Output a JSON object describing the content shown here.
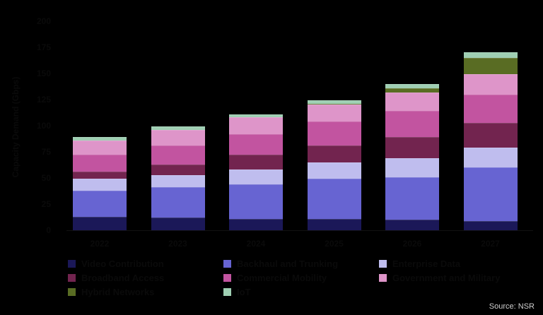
{
  "chart_data": {
    "type": "bar",
    "stacked": true,
    "title": "",
    "xlabel": "",
    "ylabel": "Capacity Demand (Gbps)",
    "ylim": [
      0,
      200
    ],
    "yticks": [
      0,
      25,
      50,
      75,
      100,
      125,
      150,
      175,
      200
    ],
    "grid": false,
    "legend_position": "bottom",
    "categories": [
      "2022",
      "2023",
      "2024",
      "2025",
      "2026",
      "2027"
    ],
    "series": [
      {
        "name": "Video Contribution",
        "color": "#1b1858",
        "values": [
          13,
          12,
          11,
          11,
          10,
          9
        ]
      },
      {
        "name": "Backhaul and Trunking",
        "color": "#6764d2",
        "values": [
          25,
          29,
          33,
          38,
          41,
          51
        ]
      },
      {
        "name": "Enterprise Data",
        "color": "#bfbdee",
        "values": [
          11,
          12,
          14,
          16,
          18,
          19
        ]
      },
      {
        "name": "Broadband Access",
        "color": "#72244f",
        "values": [
          7,
          10,
          14,
          16,
          20,
          24
        ]
      },
      {
        "name": "Commercial Mobility",
        "color": "#c254a0",
        "values": [
          16,
          18,
          20,
          23,
          25,
          27
        ]
      },
      {
        "name": "Government and Military",
        "color": "#de95c9",
        "values": [
          14,
          15,
          16,
          16,
          18,
          19
        ]
      },
      {
        "name": "Hybrid Networks",
        "color": "#596c23",
        "values": [
          0,
          0,
          0,
          1,
          4,
          16
        ]
      },
      {
        "name": "IoT",
        "color": "#9fcfb3",
        "values": [
          3,
          3,
          3,
          3,
          4,
          5
        ]
      }
    ]
  },
  "source": "Source: NSR"
}
